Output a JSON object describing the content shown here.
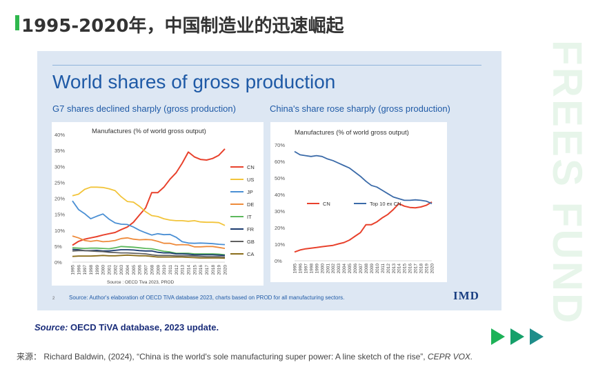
{
  "header": {
    "title": "1995-2020年，中国制造业的迅速崛起"
  },
  "watermark": {
    "text": "FREES FUND"
  },
  "slide": {
    "title": "World shares of gross production",
    "left_subtitle": "G7 shares declined sharply (gross production)",
    "right_subtitle": "China's share rose sharply (gross production)",
    "page_number": "2",
    "footnote": "Source: Author's elaboration of OECD   TiVA database 2023, charts based on PROD for all manufacturing sectors.",
    "logo": "IMD"
  },
  "source_line": {
    "label": "Source:",
    "text": " OECD TiVA database, 2023 update."
  },
  "citation": {
    "prefix": "来源：",
    "text": " Richard Baldwin, (2024), “China is the world's sole manufacturing super power: A line sketch of the rise”, ",
    "journal": "CEPR VOX."
  },
  "colors": {
    "accent_green": "#2fb84e",
    "title_blue": "#1f5aa6",
    "arrow_green": "#1db257"
  },
  "chart_data": [
    {
      "type": "line",
      "title": "Manufactures (% of world gross output)",
      "note": "Source : OECD Tiva 2023, PROD",
      "x": [
        "1995",
        "1996",
        "1997",
        "1998",
        "1999",
        "2000",
        "2001",
        "2002",
        "2003",
        "2004",
        "2005",
        "2006",
        "2007",
        "2008",
        "2009",
        "2010",
        "2011",
        "2012",
        "2013",
        "2014",
        "2015",
        "2016",
        "2017",
        "2018",
        "2019",
        "2020"
      ],
      "ylim": [
        0,
        40
      ],
      "yticks": [
        "0%",
        "5%",
        "10%",
        "15%",
        "20%",
        "25%",
        "30%",
        "35%",
        "40%"
      ],
      "legend_position": "right",
      "series": [
        {
          "name": "CN",
          "color": "#e8412c",
          "values": [
            5.3,
            6.5,
            7.2,
            7.6,
            8.0,
            8.5,
            8.9,
            9.3,
            10.2,
            11.0,
            12.5,
            14.8,
            17.0,
            21.8,
            21.8,
            23.5,
            26.0,
            28.0,
            31.0,
            34.5,
            33.0,
            32.2,
            32.0,
            32.5,
            33.5,
            35.5
          ]
        },
        {
          "name": "US",
          "color": "#f2c43a",
          "values": [
            20.8,
            21.3,
            22.8,
            23.5,
            23.5,
            23.4,
            23.0,
            22.4,
            20.5,
            19.0,
            18.8,
            17.5,
            15.8,
            14.6,
            14.3,
            13.6,
            13.2,
            13.0,
            13.0,
            12.8,
            13.0,
            12.6,
            12.5,
            12.5,
            12.4,
            11.5
          ]
        },
        {
          "name": "JP",
          "color": "#4a8fd4",
          "values": [
            19.2,
            16.5,
            15.2,
            13.6,
            14.4,
            15.1,
            13.5,
            12.3,
            11.9,
            11.8,
            11.0,
            10.0,
            9.2,
            8.5,
            8.9,
            8.6,
            8.7,
            7.8,
            6.4,
            6.0,
            5.9,
            6.0,
            5.9,
            5.8,
            5.6,
            5.5
          ]
        },
        {
          "name": "DE",
          "color": "#ee8a3a",
          "values": [
            8.2,
            7.6,
            6.8,
            6.5,
            6.8,
            6.4,
            6.5,
            6.8,
            7.4,
            7.6,
            7.2,
            7.0,
            7.1,
            7.0,
            6.5,
            5.9,
            5.9,
            5.4,
            5.5,
            5.4,
            4.8,
            4.8,
            4.9,
            4.9,
            4.6,
            4.3
          ]
        },
        {
          "name": "IT",
          "color": "#5cb85c",
          "values": [
            4.5,
            4.4,
            4.3,
            4.4,
            4.4,
            4.3,
            4.2,
            4.5,
            4.9,
            4.8,
            4.7,
            4.5,
            4.3,
            4.2,
            3.8,
            3.4,
            3.2,
            2.8,
            2.8,
            2.8,
            2.6,
            2.6,
            2.6,
            2.6,
            2.5,
            2.3
          ]
        },
        {
          "name": "FR",
          "color": "#1a3a6e",
          "values": [
            4.0,
            3.9,
            3.6,
            3.6,
            3.7,
            3.5,
            3.5,
            3.7,
            3.9,
            3.9,
            3.8,
            3.6,
            3.5,
            3.5,
            3.1,
            2.9,
            2.9,
            2.6,
            2.6,
            2.5,
            2.3,
            2.3,
            2.3,
            2.3,
            2.2,
            2.1
          ]
        },
        {
          "name": "GB",
          "color": "#606060",
          "values": [
            3.5,
            3.6,
            3.6,
            3.5,
            3.4,
            3.3,
            3.1,
            3.0,
            2.9,
            2.9,
            2.8,
            2.7,
            2.6,
            2.3,
            2.1,
            2.1,
            2.1,
            2.0,
            2.0,
            2.0,
            1.9,
            1.8,
            1.7,
            1.7,
            1.7,
            1.6
          ]
        },
        {
          "name": "CA",
          "color": "#8a6d1a",
          "values": [
            1.8,
            1.9,
            1.9,
            1.9,
            2.0,
            2.1,
            2.0,
            2.0,
            2.1,
            2.2,
            2.1,
            2.0,
            2.0,
            1.8,
            1.6,
            1.6,
            1.6,
            1.6,
            1.6,
            1.5,
            1.4,
            1.3,
            1.3,
            1.3,
            1.3,
            1.2
          ]
        }
      ]
    },
    {
      "type": "line",
      "title": "Manufactures (% of world gross output)",
      "x": [
        "1995",
        "1996",
        "1997",
        "1998",
        "1999",
        "2000",
        "2001",
        "2002",
        "2003",
        "2004",
        "2005",
        "2006",
        "2007",
        "2008",
        "2009",
        "2010",
        "2011",
        "2012",
        "2013",
        "2014",
        "2015",
        "2016",
        "2017",
        "2018",
        "2019",
        "2020"
      ],
      "ylim": [
        0,
        70
      ],
      "yticks": [
        "0%",
        "10%",
        "20%",
        "30%",
        "40%",
        "50%",
        "60%",
        "70%"
      ],
      "legend_position": "middle",
      "series": [
        {
          "name": "CN",
          "color": "#e8412c",
          "values": [
            5.3,
            6.5,
            7.2,
            7.6,
            8.0,
            8.5,
            8.9,
            9.3,
            10.2,
            11.0,
            12.5,
            14.8,
            17.0,
            21.8,
            21.8,
            23.5,
            26.0,
            28.0,
            31.0,
            34.5,
            33.0,
            32.2,
            32.0,
            32.5,
            33.5,
            35.5
          ]
        },
        {
          "name": "Top 10 ex CN",
          "color": "#3a6aa8",
          "values": [
            66,
            64,
            63.5,
            63,
            63.5,
            63,
            61.5,
            60.5,
            59,
            57.5,
            56,
            53.5,
            51,
            48,
            45.5,
            44.5,
            42.5,
            40.5,
            38.5,
            37.5,
            36.5,
            36.5,
            36.8,
            36.5,
            36,
            34.5
          ]
        }
      ]
    }
  ]
}
